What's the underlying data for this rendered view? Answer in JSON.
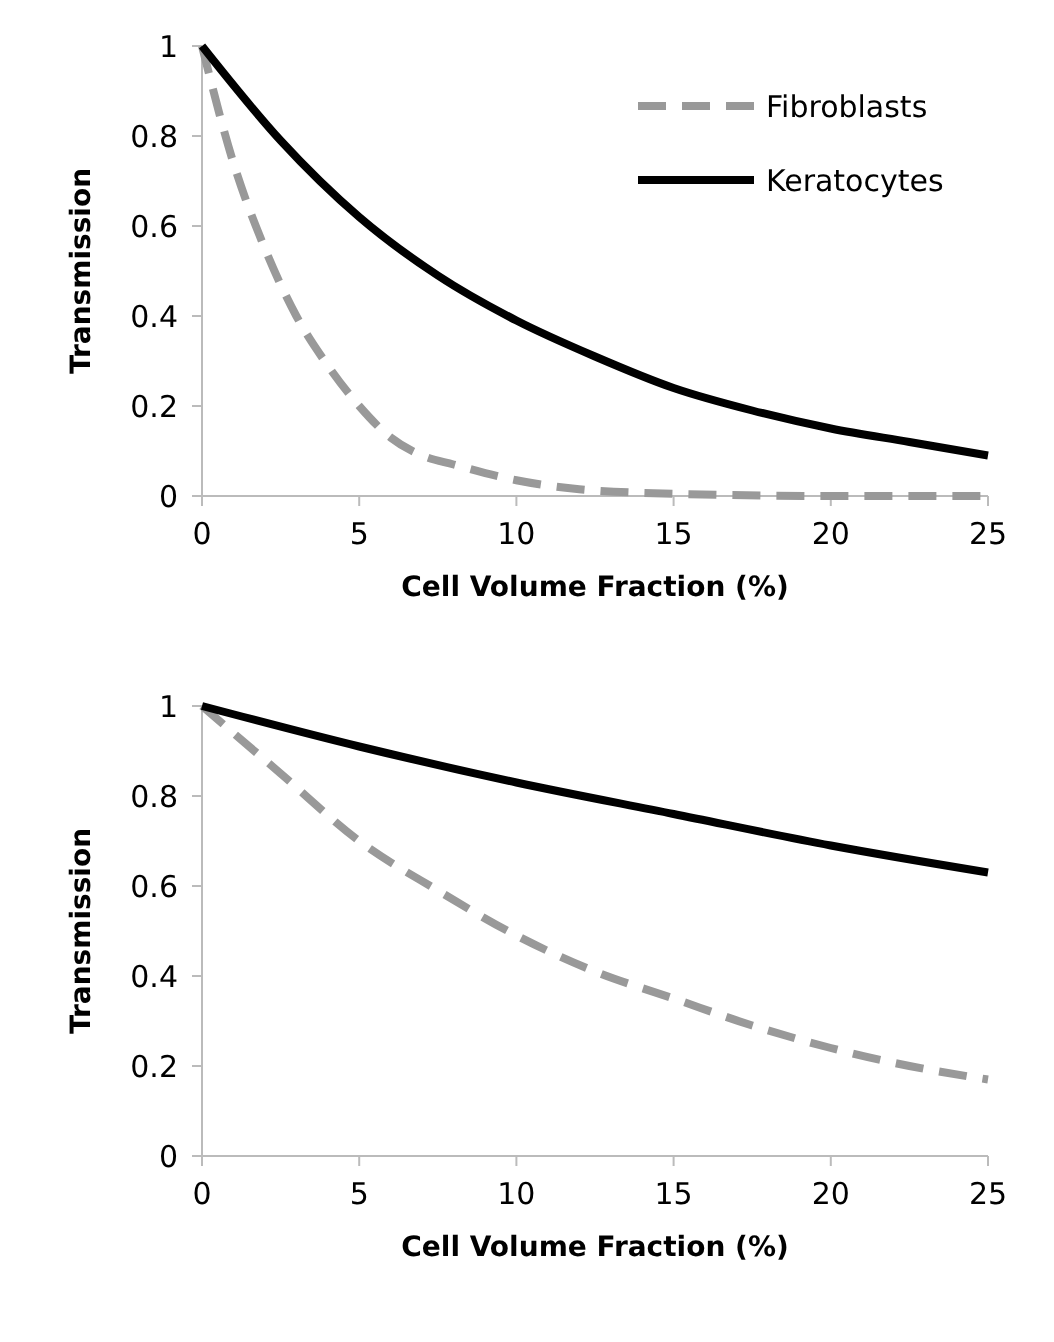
{
  "chart_data": [
    {
      "type": "line",
      "xlabel": "Cell Volume Fraction (%)",
      "ylabel": "Transmission",
      "xlim": [
        0,
        25
      ],
      "ylim": [
        0,
        1
      ],
      "xticks": [
        0,
        5,
        10,
        15,
        20,
        25
      ],
      "yticks": [
        0,
        0.2,
        0.4,
        0.6,
        0.8,
        1
      ],
      "grid": false,
      "legend": "top right",
      "series": [
        {
          "name": "Fibroblasts",
          "color": "#999999",
          "line_style": "dashed",
          "x": [
            0,
            1,
            2,
            3,
            4,
            5,
            6,
            7,
            8,
            10,
            12,
            15,
            20,
            25
          ],
          "values": [
            1,
            0.74,
            0.55,
            0.4,
            0.29,
            0.2,
            0.13,
            0.09,
            0.07,
            0.035,
            0.015,
            0.005,
            0,
            0
          ]
        },
        {
          "name": "Keratocytes",
          "color": "#000000",
          "line_style": "solid",
          "x": [
            0,
            2.5,
            5,
            7.5,
            10,
            12.5,
            15,
            17.5,
            20,
            22.5,
            25
          ],
          "values": [
            1,
            0.79,
            0.62,
            0.49,
            0.39,
            0.31,
            0.24,
            0.19,
            0.15,
            0.12,
            0.09
          ]
        }
      ]
    },
    {
      "type": "line",
      "xlabel": "Cell Volume Fraction (%)",
      "ylabel": "Transmission",
      "xlim": [
        0,
        25
      ],
      "ylim": [
        0,
        1
      ],
      "xticks": [
        0,
        5,
        10,
        15,
        20,
        25
      ],
      "yticks": [
        0,
        0.2,
        0.4,
        0.6,
        0.8,
        1
      ],
      "grid": false,
      "legend": false,
      "series": [
        {
          "color": "#999999",
          "line_style": "dashed",
          "x": [
            0,
            2.5,
            5,
            7.5,
            10,
            12.5,
            15,
            17.5,
            20,
            22.5,
            25
          ],
          "values": [
            1,
            0.85,
            0.7,
            0.59,
            0.49,
            0.41,
            0.35,
            0.29,
            0.24,
            0.2,
            0.17
          ]
        },
        {
          "color": "#000000",
          "line_style": "solid",
          "x": [
            0,
            5,
            10,
            15,
            20,
            25
          ],
          "values": [
            1,
            0.91,
            0.83,
            0.76,
            0.69,
            0.63
          ]
        }
      ]
    }
  ]
}
